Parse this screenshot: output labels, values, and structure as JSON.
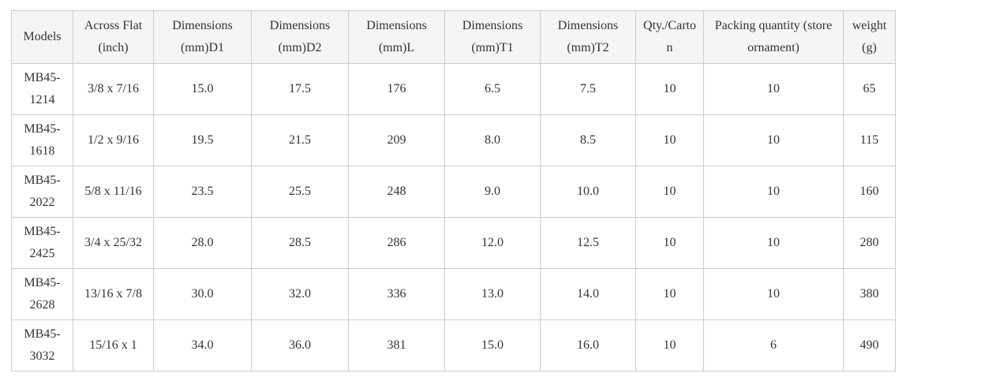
{
  "table": {
    "title": "product-specifications",
    "headers": [
      "Models",
      "Across Flat (inch)",
      "Dimensions (mm)D1",
      "Dimensions (mm)D2",
      "Dimensions (mm)L",
      "Dimensions (mm)T1",
      "Dimensions (mm)T2",
      "Qty./Carton",
      "Packing quantity (store ornament)",
      "weight (g)"
    ],
    "rows": [
      [
        "MB45-1214",
        "3/8 x 7/16",
        "15.0",
        "17.5",
        "176",
        "6.5",
        "7.5",
        "10",
        "10",
        "65"
      ],
      [
        "MB45-1618",
        "1/2 x 9/16",
        "19.5",
        "21.5",
        "209",
        "8.0",
        "8.5",
        "10",
        "10",
        "115"
      ],
      [
        "MB45-2022",
        "5/8 x 11/16",
        "23.5",
        "25.5",
        "248",
        "9.0",
        "10.0",
        "10",
        "10",
        "160"
      ],
      [
        "MB45-2425",
        "3/4 x 25/32",
        "28.0",
        "28.5",
        "286",
        "12.0",
        "12.5",
        "10",
        "10",
        "280"
      ],
      [
        "MB45-2628",
        "13/16 x 7/8",
        "30.0",
        "32.0",
        "336",
        "13.0",
        "14.0",
        "10",
        "10",
        "380"
      ],
      [
        "MB45-3032",
        "15/16 x 1",
        "34.0",
        "36.0",
        "381",
        "15.0",
        "16.0",
        "10",
        "6",
        "490"
      ]
    ],
    "colors": {
      "header_background": "#f5f5f5",
      "border": "#cccccc",
      "text": "#333333",
      "row_background": "#ffffff"
    }
  }
}
